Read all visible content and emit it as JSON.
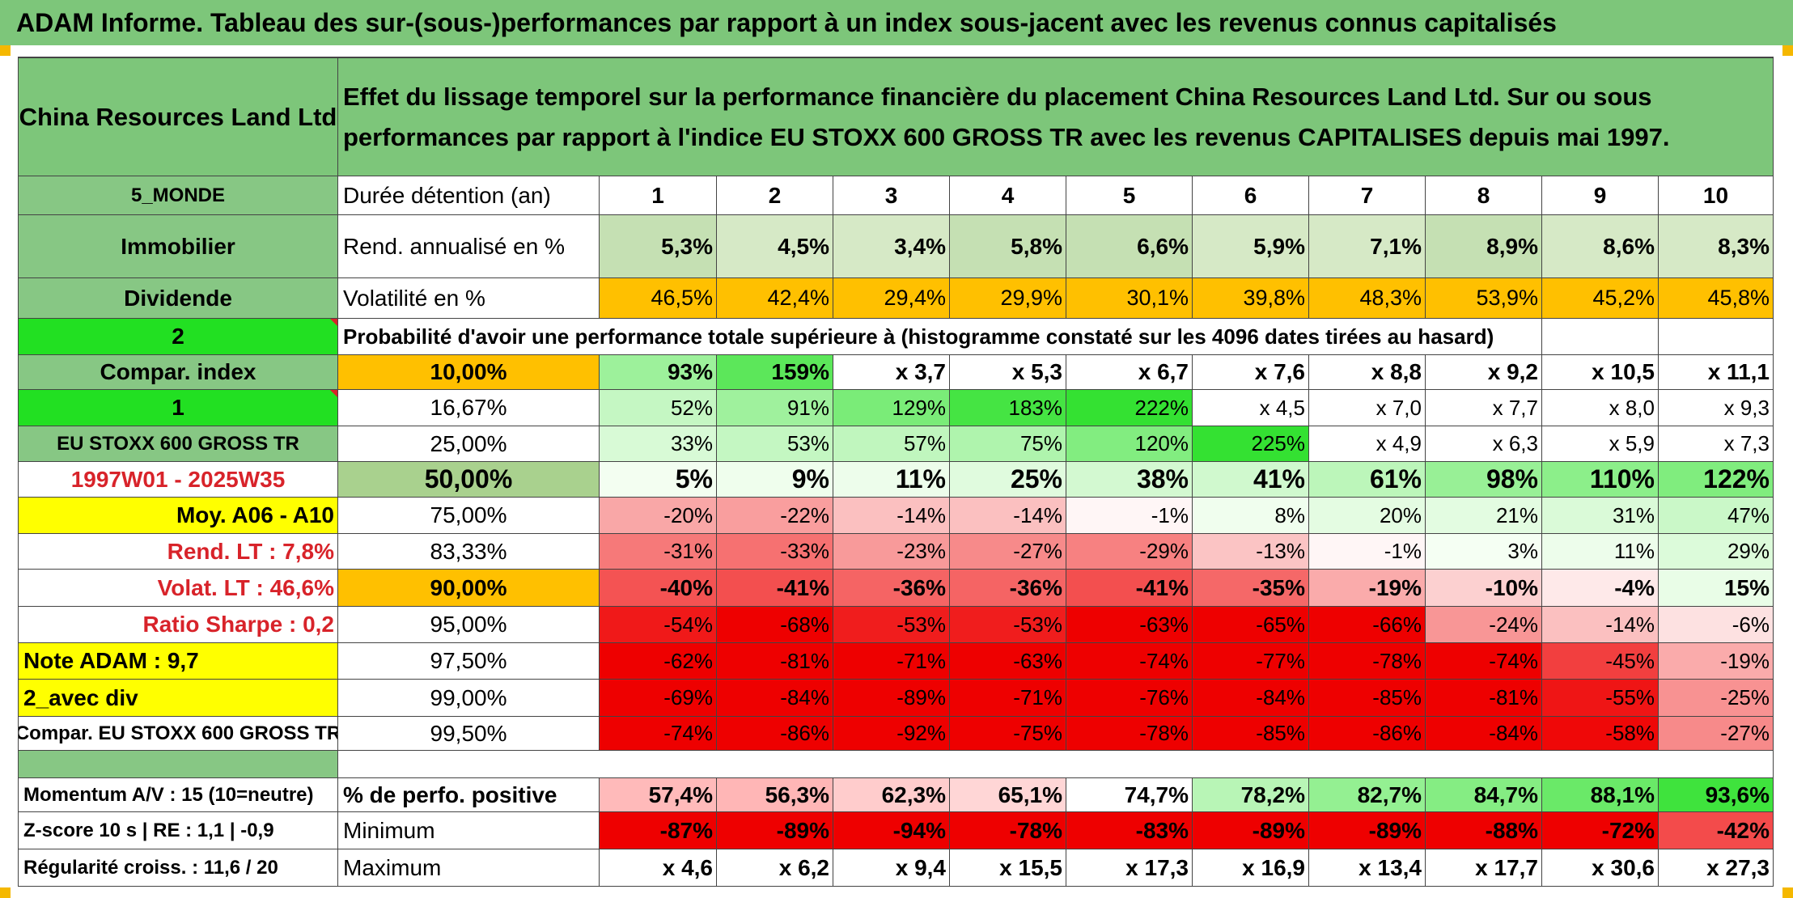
{
  "title": "ADAM Informe. Tableau des sur-(sous-)performances par rapport à un index sous-jacent avec les revenus connus capitalisés",
  "colors": {
    "header_green": "#7dc67a",
    "label_green": "#87c784",
    "bright_green": "#22e022",
    "yellow": "#ffff00",
    "orange": "#ffc000",
    "deep_red": "#ee0000",
    "text_red": "#d8232a"
  },
  "company": "China Resources Land Ltd",
  "description": "Effet du lissage temporel sur la performance financière du placement China Resources Land Ltd. Sur ou sous performances par rapport à l'indice EU STOXX 600 GROSS TR avec les revenus CAPITALISES depuis mai 1997.",
  "left_labels": {
    "region": "5_MONDE",
    "sector": "Immobilier",
    "type": "Dividende",
    "num_a": "2",
    "compar_index": "Compar. index",
    "num_b": "1",
    "index_name": "EU STOXX 600 GROSS TR",
    "period": "1997W01 - 2025W35",
    "moy": "Moy. A06 - A10",
    "rend_lt": "Rend. LT :   7,8%",
    "volat_lt": "Volat. LT :   46,6%",
    "sharpe": "Ratio Sharpe :   0,2",
    "note": "Note ADAM : 9,7",
    "avec_div": "2_avec div",
    "compar_full": "Compar. EU STOXX 600 GROSS TR",
    "momentum": "Momentum A/V : 15 (10=neutre)",
    "zscore": "Z-score 10 s | RE : 1,1 | -0,9",
    "regularite": "Régularité croiss. : 11,6 / 20"
  },
  "header_row": {
    "label": "Durée détention (an)",
    "years": [
      "1",
      "2",
      "3",
      "4",
      "5",
      "6",
      "7",
      "8",
      "9",
      "10"
    ]
  },
  "rend_row": {
    "label": "Rend. annualisé en %",
    "values": [
      "5,3%",
      "4,5%",
      "3,4%",
      "5,8%",
      "6,6%",
      "5,9%",
      "7,1%",
      "8,9%",
      "8,6%",
      "8,3%"
    ]
  },
  "vol_row": {
    "label": "Volatilité en %",
    "values": [
      "46,5%",
      "42,4%",
      "29,4%",
      "29,9%",
      "30,1%",
      "39,8%",
      "48,3%",
      "53,9%",
      "45,2%",
      "45,8%"
    ]
  },
  "prob_text": "Probabilité d'avoir une performance totale supérieure à (histogramme constaté sur les 4096 dates tirées au hasard)",
  "percentile_rows": [
    {
      "pct": "10,00%",
      "values": [
        "93%",
        "159%",
        "x 3,7",
        "x 5,3",
        "x 6,7",
        "x 7,6",
        "x 8,8",
        "x 9,2",
        "x 10,5",
        "x 11,1"
      ]
    },
    {
      "pct": "16,67%",
      "values": [
        "52%",
        "91%",
        "129%",
        "183%",
        "222%",
        "x 4,5",
        "x 7,0",
        "x 7,7",
        "x 8,0",
        "x 9,3"
      ]
    },
    {
      "pct": "25,00%",
      "values": [
        "33%",
        "53%",
        "57%",
        "75%",
        "120%",
        "225%",
        "x 4,9",
        "x 6,3",
        "x 5,9",
        "x 7,3"
      ]
    },
    {
      "pct": "50,00%",
      "values": [
        "5%",
        "9%",
        "11%",
        "25%",
        "38%",
        "41%",
        "61%",
        "98%",
        "110%",
        "122%"
      ]
    },
    {
      "pct": "75,00%",
      "values": [
        "-20%",
        "-22%",
        "-14%",
        "-14%",
        "-1%",
        "8%",
        "20%",
        "21%",
        "31%",
        "47%"
      ]
    },
    {
      "pct": "83,33%",
      "values": [
        "-31%",
        "-33%",
        "-23%",
        "-27%",
        "-29%",
        "-13%",
        "-1%",
        "3%",
        "11%",
        "29%"
      ]
    },
    {
      "pct": "90,00%",
      "values": [
        "-40%",
        "-41%",
        "-36%",
        "-36%",
        "-41%",
        "-35%",
        "-19%",
        "-10%",
        "-4%",
        "15%"
      ]
    },
    {
      "pct": "95,00%",
      "values": [
        "-54%",
        "-68%",
        "-53%",
        "-53%",
        "-63%",
        "-65%",
        "-66%",
        "-24%",
        "-14%",
        "-6%"
      ]
    },
    {
      "pct": "97,50%",
      "values": [
        "-62%",
        "-81%",
        "-71%",
        "-63%",
        "-74%",
        "-77%",
        "-78%",
        "-74%",
        "-45%",
        "-19%"
      ]
    },
    {
      "pct": "99,00%",
      "values": [
        "-69%",
        "-84%",
        "-89%",
        "-71%",
        "-76%",
        "-84%",
        "-85%",
        "-81%",
        "-55%",
        "-25%"
      ]
    },
    {
      "pct": "99,50%",
      "values": [
        "-74%",
        "-86%",
        "-92%",
        "-75%",
        "-78%",
        "-85%",
        "-86%",
        "-84%",
        "-58%",
        "-27%"
      ]
    }
  ],
  "summary_rows": [
    {
      "label": "% de perfo. positive",
      "values": [
        "57,4%",
        "56,3%",
        "62,3%",
        "65,1%",
        "74,7%",
        "78,2%",
        "82,7%",
        "84,7%",
        "88,1%",
        "93,6%"
      ]
    },
    {
      "label": "Minimum",
      "values": [
        "-87%",
        "-89%",
        "-94%",
        "-78%",
        "-83%",
        "-89%",
        "-89%",
        "-88%",
        "-72%",
        "-42%"
      ]
    },
    {
      "label": "Maximum",
      "values": [
        "x 4,6",
        "x 6,2",
        "x 9,4",
        "x 15,5",
        "x 17,3",
        "x 16,9",
        "x 13,4",
        "x 17,7",
        "x 30,6",
        "x 27,3"
      ]
    }
  ]
}
